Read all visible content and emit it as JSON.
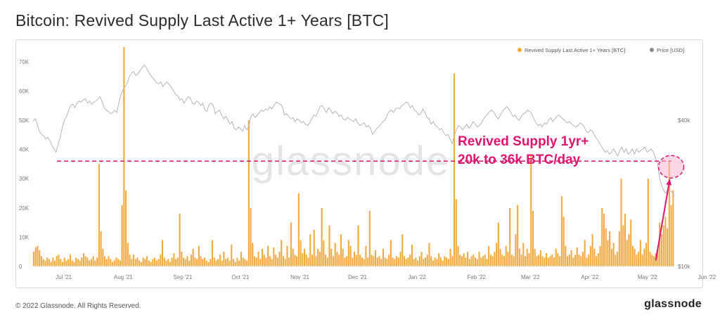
{
  "header": {
    "title": "Bitcoin: Revived Supply Last Active 1+ Years [BTC]"
  },
  "footer": {
    "copyright": "© 2022 Glassnode. All Rights Reserved.",
    "brand": "glassnode"
  },
  "watermark": "glassnode",
  "annotation": {
    "line1": "Revived Supply 1yr+",
    "line2": "20k to 36k BTC/day",
    "level": 36000,
    "color": "#e0146e"
  },
  "colors": {
    "bars": "#f2a93b",
    "price": "#b5b5b5"
  },
  "chart_data": {
    "type": "bar",
    "title": "Bitcoin: Revived Supply Last Active 1+ Years [BTC]",
    "legend_position": "top-right",
    "legend": [
      {
        "name": "Revived Supply Last Active 1+ Years [BTC]",
        "color": "#f2a93b"
      },
      {
        "name": "Price [USD]",
        "color": "#888888"
      }
    ],
    "x_ticks": [
      "Jul '21",
      "Aug '21",
      "Sep '21",
      "Oct '21",
      "Nov '21",
      "Dec '21",
      "Jan '22",
      "Feb '22",
      "Mar '22",
      "Apr '22",
      "May '22",
      "Jun '22"
    ],
    "y_left": {
      "ticks": [
        "0",
        "10K",
        "20K",
        "30K",
        "40K",
        "50K",
        "60K",
        "70K"
      ],
      "range": [
        0,
        75000
      ]
    },
    "y_right": {
      "ticks": [
        "$10k",
        "$40k"
      ],
      "scale": "log"
    },
    "start_date": "2021-06-15",
    "series": [
      {
        "name": "Revived Supply Last Active 1+ Years [BTC]",
        "values": [
          5000,
          6500,
          7000,
          5500,
          3500,
          2500,
          2000,
          3000,
          2500,
          1500,
          3000,
          2000,
          3500,
          4000,
          2500,
          1500,
          3000,
          2000,
          2500,
          4000,
          2000,
          1500,
          3000,
          2500,
          2000,
          3000,
          4500,
          3500,
          3000,
          2000,
          2500,
          3500,
          2000,
          3000,
          35000,
          12000,
          6000,
          3500,
          2500,
          3500,
          2500,
          1500,
          2000,
          3000,
          2500,
          2000,
          21000,
          75000,
          26000,
          8000,
          4000,
          2500,
          4000,
          2500,
          3000,
          2000,
          1500,
          3000,
          2500,
          3500,
          2000,
          1500,
          2500,
          3000,
          2000,
          2500,
          4000,
          9000,
          3000,
          2000,
          2500,
          1500,
          3000,
          4500,
          2500,
          3000,
          18000,
          5000,
          3000,
          2500,
          3500,
          2000,
          4000,
          6000,
          3000,
          2500,
          7000,
          3500,
          2500,
          3000,
          2000,
          1500,
          2500,
          9000,
          3000,
          2000,
          2500,
          4000,
          2000,
          5000,
          2500,
          3000,
          2000,
          7500,
          2500,
          1500,
          3000,
          2000,
          5000,
          3000,
          2500,
          2000,
          50000,
          20000,
          8000,
          3500,
          3000,
          5000,
          2500,
          6000,
          4000,
          3000,
          7000,
          3500,
          2500,
          6500,
          4000,
          3000,
          5000,
          9000,
          3500,
          2500,
          7000,
          3000,
          15000,
          6000,
          4000,
          3500,
          25000,
          9000,
          4500,
          6000,
          4000,
          3000,
          11000,
          4000,
          12500,
          3500,
          6000,
          5000,
          20000,
          9000,
          4000,
          3000,
          14000,
          6000,
          3500,
          8000,
          5000,
          4000,
          11000,
          6000,
          3000,
          3500,
          9000,
          7000,
          3000,
          5000,
          4000,
          14000,
          4000,
          3000,
          2500,
          7000,
          3000,
          19000,
          4000,
          3500,
          5500,
          3000,
          3500,
          2500,
          6000,
          3000,
          2500,
          4000,
          9000,
          3000,
          2500,
          3500,
          3000,
          5000,
          11000,
          3500,
          2500,
          3000,
          4000,
          7500,
          2500,
          3000,
          2000,
          3500,
          5000,
          2500,
          3000,
          4000,
          8000,
          3500,
          2000,
          3000,
          2500,
          4500,
          3000,
          2000,
          3500,
          3000,
          2500,
          6000,
          3500,
          66000,
          23000,
          7000,
          4000,
          3500,
          4500,
          3000,
          5000,
          2500,
          3500,
          4000,
          3000,
          2500,
          5000,
          3000,
          3500,
          4000,
          2500,
          7000,
          4000,
          3500,
          5000,
          8000,
          15000,
          6000,
          4000,
          3500,
          7000,
          5000,
          20000,
          4000,
          3500,
          11000,
          21000,
          6000,
          4000,
          8000,
          3500,
          6000,
          4500,
          38000,
          19000,
          6000,
          3500,
          4000,
          5500,
          3500,
          3000,
          4500,
          3000,
          3500,
          4000,
          3000,
          6000,
          4500,
          3500,
          24000,
          17000,
          7000,
          3500,
          4000,
          5500,
          3000,
          4000,
          6500,
          4000,
          3500,
          5000,
          9000,
          3000,
          4000,
          7000,
          11000,
          6000,
          3500,
          4500,
          7000,
          20000,
          18000,
          13000,
          9000,
          12000,
          6000,
          8000,
          4000,
          5000,
          12000,
          30000,
          14000,
          18000,
          9000,
          11000,
          16000,
          7000,
          6000,
          4000,
          5000,
          9000,
          4000,
          6000,
          8000,
          30000,
          5000,
          4000,
          3500,
          4500,
          6000,
          15000,
          11000,
          14000,
          17000,
          13000,
          36000,
          21000,
          26000
        ]
      },
      {
        "name": "Price [USD]",
        "values": [
          39500,
          40500,
          38500,
          36000,
          35000,
          34500,
          33500,
          34000,
          33000,
          31500,
          30500,
          29500,
          32000,
          34000,
          37500,
          40000,
          41500,
          44000,
          46000,
          46500,
          45000,
          47000,
          48000,
          47500,
          48500,
          49000,
          47000,
          48000,
          46500,
          47500,
          48000,
          49000,
          50000,
          47500,
          45000,
          44000,
          43500,
          42500,
          43000,
          44000,
          43000,
          47500,
          51000,
          53500,
          55000,
          57000,
          60500,
          62500,
          63500,
          61000,
          62000,
          64000,
          65500,
          67500,
          66000,
          63500,
          61500,
          60000,
          58500,
          57000,
          56500,
          57500,
          55000,
          56500,
          57500,
          56000,
          54500,
          53000,
          51000,
          50500,
          48500,
          49000,
          47000,
          48500,
          50000,
          49500,
          47000,
          46500,
          48000,
          47500,
          46000,
          47000,
          44000,
          43500,
          46500,
          47000,
          46000,
          42500,
          43500,
          44000,
          42000,
          40500,
          41500,
          40000,
          38500,
          39500,
          37000,
          36500,
          37500,
          37000,
          36000,
          38000,
          36500,
          38000,
          41500,
          42500,
          41000,
          42000,
          43000,
          44000,
          43500,
          44500,
          44000,
          45500,
          44500,
          46000,
          47500,
          47000,
          46500,
          45500,
          42000,
          42500,
          41500,
          40500,
          41000,
          39500,
          40500,
          40000,
          39000,
          39500,
          38500,
          38000,
          39000,
          40500,
          42000,
          41500,
          43500,
          45500,
          46000,
          44500,
          43000,
          45000,
          44000,
          42500,
          43500,
          43000,
          41500,
          42000,
          40500,
          40000,
          41000,
          40500,
          40000,
          39500,
          40500,
          39000,
          38000,
          38500,
          39000,
          37500,
          38000,
          37000,
          35000,
          36000,
          37000,
          37500,
          38500,
          39500,
          40000,
          42000,
          43500,
          44000,
          43000,
          44500,
          45000,
          44500,
          46000,
          46500,
          47500,
          47000,
          45000,
          46000,
          44000,
          43500,
          42000,
          42500,
          44500,
          43000,
          41000,
          40500,
          38500,
          39500,
          38000,
          37500,
          36500,
          37000,
          35500,
          34500,
          35000,
          33500,
          32000,
          34500,
          36500,
          38000,
          37500,
          36500,
          37500,
          38500,
          37000,
          38000,
          39500,
          38500,
          37500,
          38000,
          39000,
          40500,
          41500,
          42500,
          43500,
          44000,
          43000,
          41500,
          40500,
          42000,
          43500,
          44500,
          45500,
          44500,
          43000,
          41500,
          42000,
          40500,
          40000,
          41500,
          42500,
          43000,
          44000,
          43500,
          42500,
          40500,
          39000,
          38000,
          38500,
          37500,
          39000,
          38500,
          40000,
          41000,
          39500,
          40500,
          41500,
          42000,
          41000,
          40500,
          39500,
          39000,
          39500,
          38500,
          38000,
          37500,
          38000,
          39000,
          38500,
          37500,
          36000,
          35500,
          36500,
          36000,
          34500,
          33500,
          32500,
          31500,
          30500,
          29500,
          30000,
          29000,
          29500,
          30500,
          29500,
          28500,
          30000,
          31000,
          29500,
          30500,
          29000,
          29500,
          30500,
          29000,
          30500,
          29500,
          30000,
          30500,
          31000,
          29500,
          30000,
          30500,
          29500,
          28000,
          26500,
          23000,
          21500,
          20500,
          20000,
          21000,
          20500,
          20200,
          19500
        ]
      }
    ]
  }
}
